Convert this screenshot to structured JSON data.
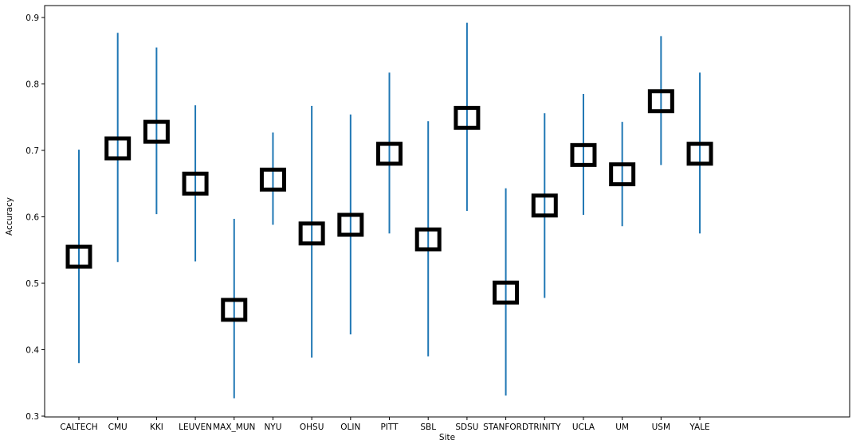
{
  "chart_data": {
    "type": "errorbar",
    "title": "",
    "xlabel": "Site",
    "ylabel": "Accuracy",
    "ylim": [
      0.3,
      0.92
    ],
    "yticks": [
      "0.3",
      "0.4",
      "0.5",
      "0.6",
      "0.7",
      "0.8",
      "0.9"
    ],
    "grid": false,
    "marker": "open-square",
    "colors": {
      "errorbar": "#1f77b4",
      "marker": "#000000"
    },
    "categories": [
      "CALTECH",
      "CMU",
      "KKI",
      "LEUVEN",
      "MAX_MUN",
      "NYU",
      "OHSU",
      "OLIN",
      "PITT",
      "SBL",
      "SDSU",
      "STANFORD",
      "TRINITY",
      "UCLA",
      "UM",
      "USM",
      "YALE"
    ],
    "values": [
      0.54,
      0.703,
      0.728,
      0.65,
      0.46,
      0.656,
      0.575,
      0.588,
      0.695,
      0.566,
      0.749,
      0.486,
      0.617,
      0.693,
      0.664,
      0.774,
      0.695
    ],
    "lower": [
      0.38,
      0.532,
      0.604,
      0.533,
      0.327,
      0.588,
      0.388,
      0.423,
      0.575,
      0.39,
      0.609,
      0.331,
      0.478,
      0.603,
      0.586,
      0.678,
      0.575
    ],
    "upper": [
      0.701,
      0.877,
      0.855,
      0.768,
      0.597,
      0.727,
      0.767,
      0.754,
      0.817,
      0.744,
      0.892,
      0.643,
      0.756,
      0.785,
      0.743,
      0.872,
      0.817
    ]
  }
}
